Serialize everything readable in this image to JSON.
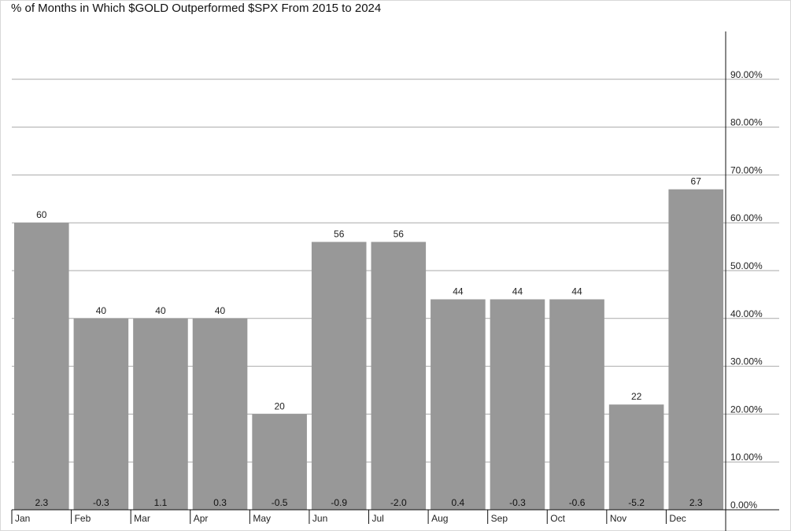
{
  "title": "% of Months in Which $GOLD Outperformed $SPX From 2015 to 2024",
  "chart_data": {
    "type": "bar",
    "title": "% of Months in Which $GOLD Outperformed $SPX From 2015 to 2024",
    "xlabel": "",
    "ylabel": "",
    "categories": [
      "Jan",
      "Feb",
      "Mar",
      "Apr",
      "May",
      "Jun",
      "Jul",
      "Aug",
      "Sep",
      "Oct",
      "Nov",
      "Dec"
    ],
    "values": [
      60,
      40,
      40,
      40,
      20,
      56,
      56,
      44,
      44,
      44,
      22,
      67
    ],
    "value_labels": [
      "60",
      "40",
      "40",
      "40",
      "20",
      "56",
      "56",
      "44",
      "44",
      "44",
      "22",
      "67"
    ],
    "bottom_labels": [
      "2.3",
      "-0.3",
      "1.1",
      "0.3",
      "-0.5",
      "-0.9",
      "-2.0",
      "0.4",
      "-0.3",
      "-0.6",
      "-5.2",
      "2.3"
    ],
    "ylim": [
      0,
      100
    ],
    "yticks": [
      0,
      10,
      20,
      30,
      40,
      50,
      60,
      70,
      80,
      90
    ],
    "ytick_labels": [
      "0.00%",
      "10.00%",
      "20.00%",
      "30.00%",
      "40.00%",
      "50.00%",
      "60.00%",
      "70.00%",
      "80.00%",
      "90.00%"
    ],
    "y_axis_side": "right",
    "grid": true,
    "legend": "none",
    "colors": {
      "bar": "#989898",
      "grid": "#a9a9a9",
      "axis": "#111111"
    }
  }
}
